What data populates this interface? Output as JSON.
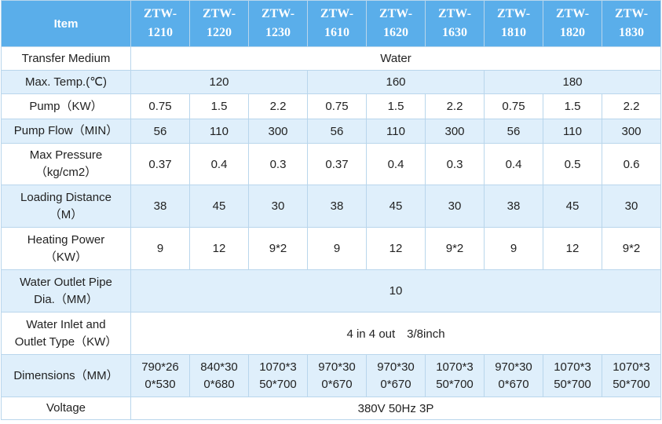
{
  "table": {
    "header": [
      "Item",
      "ZTW-1210",
      "ZTW-1220",
      "ZTW-1230",
      "ZTW-1610",
      "ZTW-1620",
      "ZTW-1630",
      "ZTW-1810",
      "ZTW-1820",
      "ZTW-1830"
    ],
    "rows": [
      {
        "label": "Transfer Medium",
        "cells": [
          "Water"
        ]
      },
      {
        "label": "Max. Temp.(℃)",
        "cells": [
          "120",
          "160",
          "180"
        ]
      },
      {
        "label": "Pump（KW）",
        "cells": [
          "0.75",
          "1.5",
          "2.2",
          "0.75",
          "1.5",
          "2.2",
          "0.75",
          "1.5",
          "2.2"
        ]
      },
      {
        "label": "Pump Flow（MIN）",
        "cells": [
          "56",
          "110",
          "300",
          "56",
          "110",
          "300",
          "56",
          "110",
          "300"
        ]
      },
      {
        "label": "Max Pressure\n（kg/cm2）",
        "cells": [
          "0.37",
          "0.4",
          "0.3",
          "0.37",
          "0.4",
          "0.3",
          "0.4",
          "0.5",
          "0.6"
        ]
      },
      {
        "label": "Loading Distance\n（M）",
        "cells": [
          "38",
          "45",
          "30",
          "38",
          "45",
          "30",
          "38",
          "45",
          "30"
        ]
      },
      {
        "label": "Heating Power\n（KW）",
        "cells": [
          "9",
          "12",
          "9*2",
          "9",
          "12",
          "9*2",
          "9",
          "12",
          "9*2"
        ]
      },
      {
        "label": "Water Outlet Pipe\nDia.（MM）",
        "cells": [
          "10"
        ]
      },
      {
        "label": "Water Inlet and\nOutlet Type（KW）",
        "cells": [
          "4 in 4 out　3/8inch"
        ]
      },
      {
        "label": "Dimensions（MM）",
        "cells": [
          "790*260*530",
          "840*300*680",
          "1070*350*700",
          "970*300*670",
          "970*300*670",
          "1070*350*700",
          "970*300*670",
          "1070*350*700",
          "1070*350*700"
        ]
      },
      {
        "label": "Voltage",
        "cells": [
          "380V 50Hz 3P"
        ]
      }
    ]
  }
}
